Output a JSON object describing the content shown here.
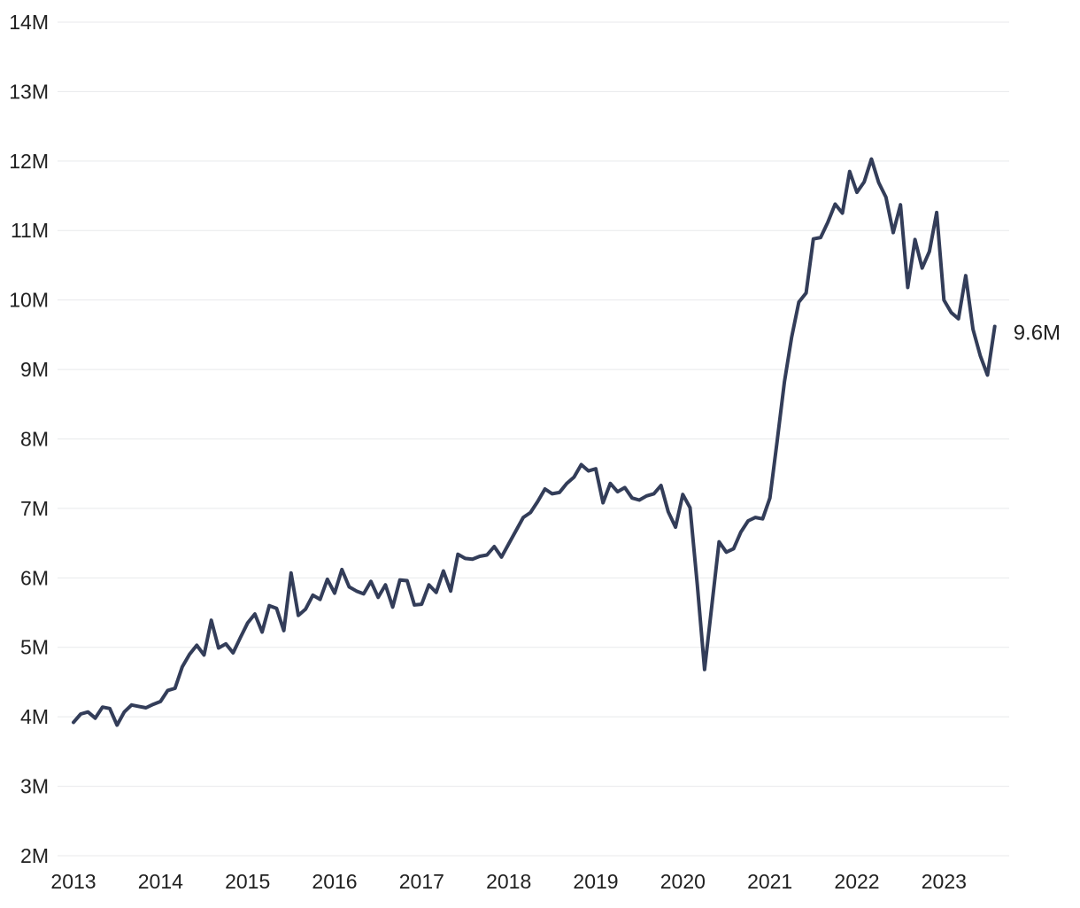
{
  "chart_data": {
    "type": "line",
    "title": "",
    "grid": true,
    "legend_position": "none",
    "x_start": {
      "year": 2013,
      "month": 1
    },
    "x_interval": "monthly",
    "x_tick_labels": [
      "2013",
      "2014",
      "2015",
      "2016",
      "2017",
      "2018",
      "2019",
      "2020",
      "2021",
      "2022",
      "2023"
    ],
    "y_ticks": [
      {
        "value": 2,
        "label": "2M"
      },
      {
        "value": 3,
        "label": "3M"
      },
      {
        "value": 4,
        "label": "4M"
      },
      {
        "value": 5,
        "label": "5M"
      },
      {
        "value": 6,
        "label": "6M"
      },
      {
        "value": 7,
        "label": "7M"
      },
      {
        "value": 8,
        "label": "8M"
      },
      {
        "value": 9,
        "label": "9M"
      },
      {
        "value": 10,
        "label": "10M"
      },
      {
        "value": 11,
        "label": "11M"
      },
      {
        "value": 12,
        "label": "12M"
      },
      {
        "value": 13,
        "label": "13M"
      },
      {
        "value": 14,
        "label": "14M"
      }
    ],
    "ylim": [
      2,
      14
    ],
    "unit": "millions",
    "values": [
      3.92,
      4.04,
      4.07,
      3.98,
      4.14,
      4.12,
      3.88,
      4.07,
      4.17,
      4.15,
      4.13,
      4.18,
      4.22,
      4.38,
      4.41,
      4.72,
      4.9,
      5.03,
      4.89,
      5.39,
      4.99,
      5.05,
      4.92,
      5.14,
      5.35,
      5.48,
      5.22,
      5.6,
      5.56,
      5.24,
      6.07,
      5.46,
      5.55,
      5.75,
      5.69,
      5.98,
      5.78,
      6.12,
      5.87,
      5.81,
      5.77,
      5.95,
      5.72,
      5.9,
      5.58,
      5.97,
      5.96,
      5.61,
      5.62,
      5.9,
      5.79,
      6.1,
      5.81,
      6.34,
      6.28,
      6.27,
      6.31,
      6.33,
      6.45,
      6.3,
      6.49,
      6.68,
      6.87,
      6.94,
      7.1,
      7.28,
      7.21,
      7.23,
      7.36,
      7.45,
      7.63,
      7.54,
      7.57,
      7.08,
      7.36,
      7.24,
      7.3,
      7.15,
      7.12,
      7.18,
      7.21,
      7.33,
      6.95,
      6.73,
      7.2,
      7.01,
      5.9,
      4.68,
      5.6,
      6.52,
      6.37,
      6.42,
      6.66,
      6.82,
      6.87,
      6.85,
      7.15,
      7.97,
      8.82,
      9.46,
      9.97,
      10.1,
      10.88,
      10.9,
      11.12,
      11.38,
      11.25,
      11.85,
      11.55,
      11.7,
      12.03,
      11.69,
      11.48,
      10.97,
      11.37,
      10.18,
      10.87,
      10.46,
      10.7,
      11.26,
      10.0,
      9.82,
      9.73,
      10.35,
      9.58,
      9.2,
      8.92,
      9.62
    ],
    "end_label": "9.6M",
    "line_color": "#333d59",
    "grid_color": "#e8e9eb",
    "text_color": "#212121"
  }
}
